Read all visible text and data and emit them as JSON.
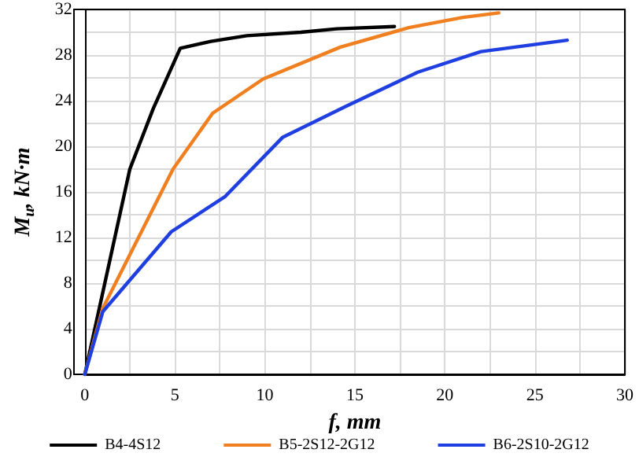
{
  "chart_data": {
    "type": "line",
    "xlabel": "f, mm",
    "ylabel": "M$_{u}$, kN·m",
    "xlim": [
      0,
      30
    ],
    "ylim": [
      0,
      32
    ],
    "xticks": [
      0,
      {
        "value": 2.5,
        "label": null
      },
      5,
      {
        "value": 7.5,
        "label": null
      },
      10,
      {
        "value": 12.5,
        "label": null
      },
      15,
      {
        "value": 17.5,
        "label": null
      },
      20,
      {
        "value": 22.5,
        "label": null
      },
      25,
      {
        "value": 27.5,
        "label": null
      },
      30
    ],
    "yticks": [
      0,
      {
        "value": 2,
        "label": null
      },
      4,
      {
        "value": 6,
        "label": null
      },
      8,
      {
        "value": 10,
        "label": null
      },
      12,
      {
        "value": 14,
        "label": null
      },
      16,
      {
        "value": 18,
        "label": null
      },
      20,
      {
        "value": 22,
        "label": null
      },
      24,
      {
        "value": 26,
        "label": null
      },
      28,
      {
        "value": 30,
        "label": null
      },
      32
    ],
    "grid": true,
    "legend": "bottom",
    "marker": "none",
    "line_style": "solid",
    "series": [
      {
        "name": "B4-4S12",
        "color": "#000000",
        "x": [
          0,
          2.5,
          3.8,
          5.3,
          7,
          9,
          12,
          14,
          17.2
        ],
        "values": [
          0,
          18,
          23.3,
          28.6,
          29.2,
          29.7,
          30,
          30.3,
          30.5
        ]
      },
      {
        "name": "B5-2S12-2G12",
        "color": "#f07f1f",
        "x": [
          0,
          1,
          4.9,
          7.1,
          9.9,
          14.2,
          18,
          21,
          23
        ],
        "values": [
          0,
          5.8,
          18,
          22.9,
          25.9,
          28.7,
          30.4,
          31.3,
          31.7
        ]
      },
      {
        "name": "B6-2S10-2G12",
        "color": "#1f3fe0",
        "x": [
          0,
          1,
          4.8,
          7.8,
          11,
          14.5,
          18.5,
          22,
          26.8
        ],
        "values": [
          0,
          5.5,
          12.5,
          15.6,
          20.8,
          23.5,
          26.5,
          28.3,
          29.3
        ]
      }
    ]
  }
}
